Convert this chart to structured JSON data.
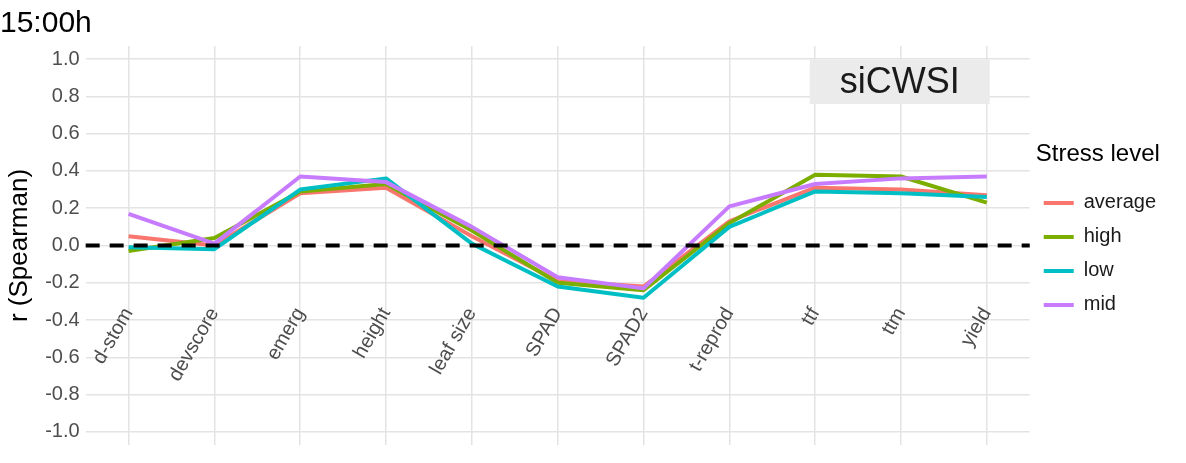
{
  "chart_data": {
    "type": "line",
    "title": "15:00h",
    "ylabel": "r (Spearman)",
    "legend_title": "Stress level",
    "annotations": [
      "siCWSI"
    ],
    "categories": [
      "d-stom",
      "devscore",
      "emerg",
      "height",
      "leaf size",
      "SPAD",
      "SPAD2",
      "t-reprod",
      "ttf",
      "ttm",
      "yield"
    ],
    "series": [
      {
        "name": "average",
        "color": "#f8766d",
        "values": [
          0.05,
          0.0,
          0.28,
          0.31,
          0.05,
          -0.19,
          -0.22,
          0.13,
          0.31,
          0.3,
          0.27
        ]
      },
      {
        "name": "high",
        "color": "#7cae00",
        "values": [
          -0.03,
          0.04,
          0.29,
          0.33,
          0.08,
          -0.2,
          -0.24,
          0.12,
          0.38,
          0.37,
          0.23
        ]
      },
      {
        "name": "low",
        "color": "#00bfc4",
        "values": [
          -0.01,
          -0.02,
          0.3,
          0.36,
          0.01,
          -0.22,
          -0.28,
          0.1,
          0.29,
          0.28,
          0.26
        ]
      },
      {
        "name": "mid",
        "color": "#c77cff",
        "values": [
          0.17,
          0.01,
          0.37,
          0.34,
          0.1,
          -0.17,
          -0.23,
          0.21,
          0.33,
          0.36,
          0.37
        ]
      }
    ],
    "ylim": [
      -1.07,
      1.07
    ],
    "yticks": [
      {
        "value": -1,
        "label": "-1.0"
      },
      {
        "value": -0.8,
        "label": "-0.8"
      },
      {
        "value": -0.6,
        "label": "-0.6"
      },
      {
        "value": -0.4,
        "label": "-0.4"
      },
      {
        "value": -0.2,
        "label": "-0.2"
      },
      {
        "value": 0,
        "label": "0.0"
      },
      {
        "value": 0.2,
        "label": "0.2"
      },
      {
        "value": 0.4,
        "label": "0.4"
      },
      {
        "value": 0.6,
        "label": "0.6"
      },
      {
        "value": 0.8,
        "label": "0.8"
      },
      {
        "value": 1,
        "label": "1.0"
      }
    ],
    "ref_lines": [
      {
        "axis": "y",
        "value": 0,
        "color": "#000000",
        "line_style": "dashed"
      }
    ],
    "grid": true,
    "legend": "right",
    "marker": "none",
    "line_style": "solid"
  }
}
